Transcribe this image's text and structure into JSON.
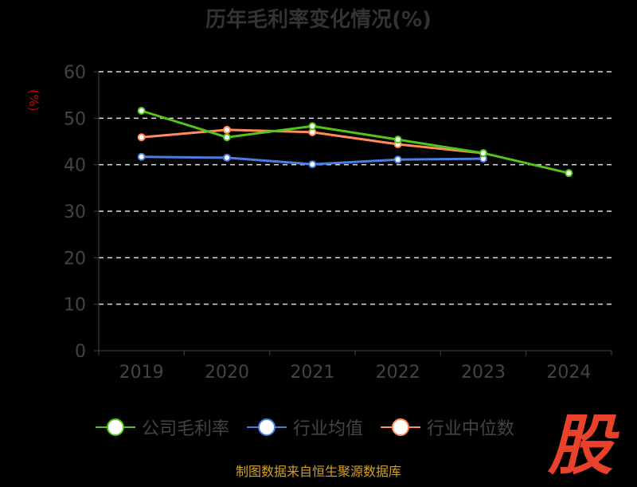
{
  "chart_data": {
    "type": "line",
    "title": "历年毛利率变化情况(%)",
    "ylabel": "(%)",
    "xlabel": "",
    "categories": [
      "2019",
      "2020",
      "2021",
      "2022",
      "2023",
      "2024"
    ],
    "ylim": [
      0,
      60
    ],
    "yticks": [
      "0",
      "10",
      "20",
      "30",
      "40",
      "50",
      "60"
    ],
    "grid": true,
    "legend_position": "bottom",
    "series": [
      {
        "name": "公司毛利率",
        "color": "#52c41a",
        "values": [
          51.6,
          45.9,
          48.3,
          45.4,
          42.5,
          38.2
        ]
      },
      {
        "name": "行业均值",
        "color": "#4a7fe0",
        "values": [
          41.7,
          41.5,
          40.1,
          41.1,
          41.3,
          null
        ]
      },
      {
        "name": "行业中位数",
        "color": "#ff8c5a",
        "values": [
          45.9,
          47.5,
          47.0,
          44.4,
          42.5,
          null
        ]
      }
    ]
  },
  "footer": {
    "source": "制图数据来自恒生聚源数据库",
    "logo": "股"
  }
}
